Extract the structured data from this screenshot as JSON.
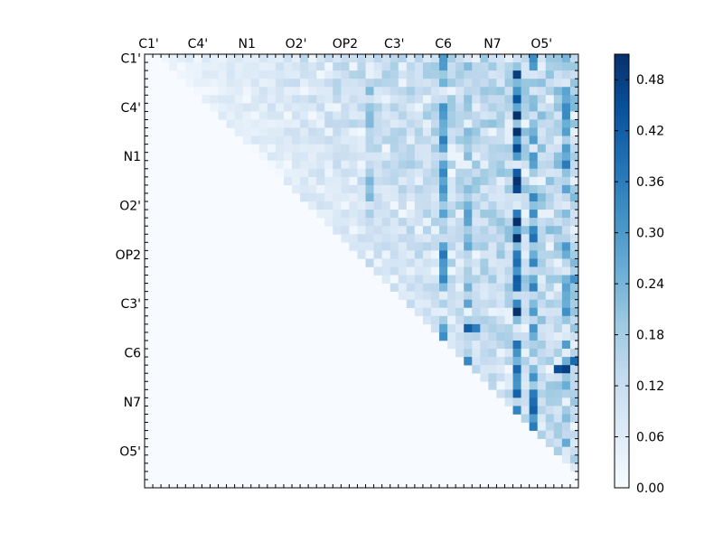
{
  "chart_data": {
    "type": "heatmap",
    "title": "",
    "xlabel": "",
    "ylabel": "",
    "n": 53,
    "upper_triangular": true,
    "x_labels": [
      {
        "index": 0,
        "label": "C1'"
      },
      {
        "index": 6,
        "label": "C4'"
      },
      {
        "index": 12,
        "label": "N1"
      },
      {
        "index": 18,
        "label": "O2'"
      },
      {
        "index": 24,
        "label": "OP2"
      },
      {
        "index": 30,
        "label": "C3'"
      },
      {
        "index": 36,
        "label": "C6"
      },
      {
        "index": 42,
        "label": "N7"
      },
      {
        "index": 48,
        "label": "O5'"
      }
    ],
    "y_labels": [
      {
        "index": 0,
        "label": "C1'"
      },
      {
        "index": 6,
        "label": "C4'"
      },
      {
        "index": 12,
        "label": "N1"
      },
      {
        "index": 18,
        "label": "O2'"
      },
      {
        "index": 24,
        "label": "OP2"
      },
      {
        "index": 30,
        "label": "C3'"
      },
      {
        "index": 36,
        "label": "C6"
      },
      {
        "index": 42,
        "label": "N7"
      },
      {
        "index": 48,
        "label": "O5'"
      }
    ],
    "colorbar": {
      "min": 0.0,
      "max": 0.51,
      "colormap": "Blues",
      "ticks": [
        "0.00",
        "0.06",
        "0.12",
        "0.18",
        "0.24",
        "0.30",
        "0.36",
        "0.42",
        "0.48"
      ]
    },
    "colors": {
      "low": "#f7fbff",
      "high": "#08306b"
    },
    "emphasis": {
      "strong_columns": [
        {
          "index": 45,
          "value": 0.45
        },
        {
          "index": 47,
          "value": 0.3
        },
        {
          "index": 51,
          "value": 0.27
        },
        {
          "index": 36,
          "value": 0.26
        },
        {
          "index": 39,
          "value": 0.24
        },
        {
          "index": 27,
          "value": 0.18
        }
      ],
      "hotspots": [
        {
          "row": 20,
          "col": 45,
          "value": 0.51
        },
        {
          "row": 16,
          "col": 45,
          "value": 0.47
        },
        {
          "row": 11,
          "col": 45,
          "value": 0.46
        },
        {
          "row": 5,
          "col": 45,
          "value": 0.44
        },
        {
          "row": 38,
          "col": 50,
          "value": 0.45
        },
        {
          "row": 38,
          "col": 51,
          "value": 0.48
        },
        {
          "row": 37,
          "col": 52,
          "value": 0.4
        },
        {
          "row": 33,
          "col": 39,
          "value": 0.42
        },
        {
          "row": 33,
          "col": 40,
          "value": 0.36
        },
        {
          "row": 27,
          "col": 36,
          "value": 0.34
        },
        {
          "row": 27,
          "col": 52,
          "value": 0.32
        }
      ]
    }
  }
}
